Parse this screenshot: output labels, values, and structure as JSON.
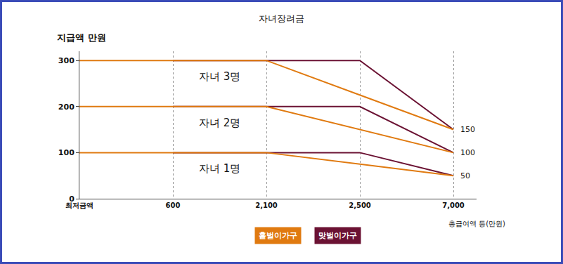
{
  "chart_data": {
    "type": "line",
    "title": "자녀장려금",
    "y_label": "지급액 만원",
    "x_label": "총급여액 등(만원)",
    "categories": [
      "최저금액",
      "600",
      "2,100",
      "2,500",
      "7,000"
    ],
    "ylim": [
      0,
      320
    ],
    "yticks": [
      0,
      100,
      200,
      300
    ],
    "grid": "x",
    "legend": "bottom",
    "end_labels": [
      150,
      100,
      50
    ],
    "series": [
      {
        "name": "맞벌이가구",
        "group": "자녀 3명",
        "color": "#6b1233",
        "values": [
          null,
          300,
          300,
          300,
          150
        ]
      },
      {
        "name": "홑벌이가구",
        "group": "자녀 3명",
        "color": "#e07a10",
        "values": [
          300,
          300,
          300,
          null,
          150
        ]
      },
      {
        "name": "맞벌이가구",
        "group": "자녀 2명",
        "color": "#6b1233",
        "values": [
          null,
          200,
          200,
          200,
          100
        ]
      },
      {
        "name": "홑벌이가구",
        "group": "자녀 2명",
        "color": "#e07a10",
        "values": [
          200,
          200,
          200,
          null,
          100
        ]
      },
      {
        "name": "맞벌이가구",
        "group": "자녀 1명",
        "color": "#6b1233",
        "values": [
          null,
          100,
          100,
          100,
          50
        ]
      },
      {
        "name": "홑벌이가구",
        "group": "자녀 1명",
        "color": "#e07a10",
        "values": [
          100,
          100,
          100,
          null,
          50
        ]
      }
    ]
  }
}
